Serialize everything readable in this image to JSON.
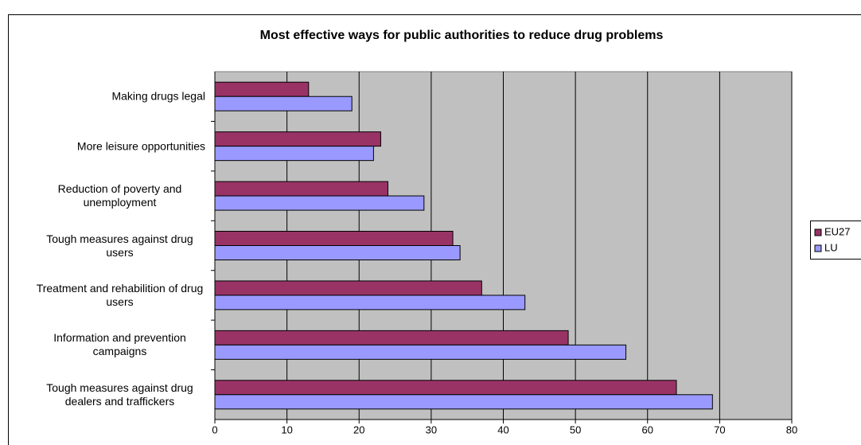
{
  "chart_data": {
    "type": "hbar",
    "title": "Most effective ways for public authorities to reduce drug problems",
    "categories": [
      "Making drugs legal",
      "More leisure opportunities",
      "Reduction of poverty and unemployment",
      "Tough measures against drug users",
      "Treatment and rehabilition of drug users",
      "Information and prevention campaigns",
      "Tough measures against drug dealers and traffickers"
    ],
    "series": [
      {
        "name": "EU27",
        "color": "#993366",
        "values": [
          13,
          23,
          24,
          33,
          37,
          49,
          64
        ]
      },
      {
        "name": "LU",
        "color": "#9999ff",
        "values": [
          19,
          22,
          29,
          34,
          43,
          57,
          69
        ]
      }
    ],
    "xlim": [
      0,
      80
    ],
    "xticks": [
      0,
      10,
      20,
      30,
      40,
      50,
      60,
      70,
      80
    ],
    "grid": true,
    "legend": "right"
  }
}
